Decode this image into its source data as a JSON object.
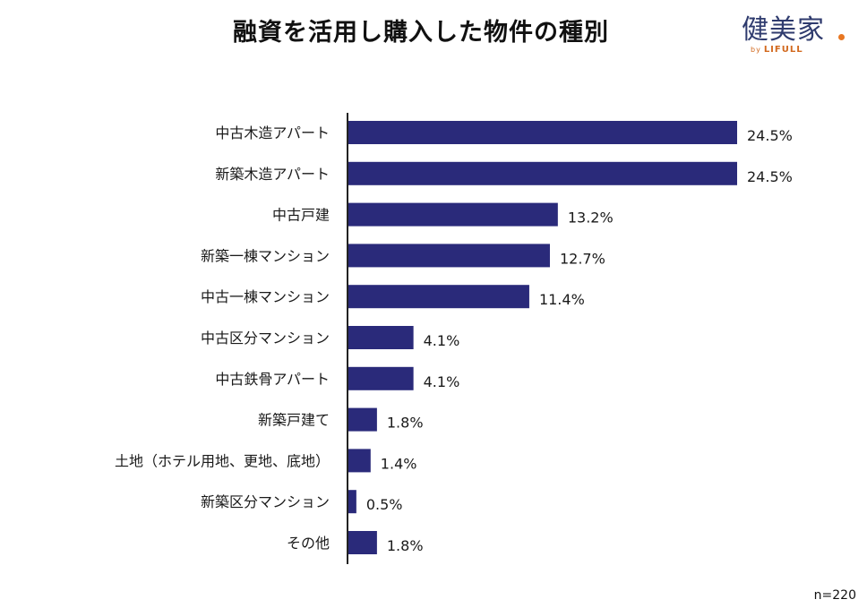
{
  "title": "融資を活用し購入した物件の種別",
  "logo": {
    "main": "健美家",
    "by": "by",
    "brand": "LIFULL",
    "dot_color": "#e87722"
  },
  "sample_size": "n=220",
  "colors": {
    "bar": "#2a2a7a",
    "axis": "#222222"
  },
  "chart_data": {
    "type": "bar",
    "orientation": "horizontal",
    "title": "融資を活用し購入した物件の種別",
    "xlabel": "",
    "ylabel": "",
    "categories": [
      "中古木造アパート",
      "新築木造アパート",
      "中古戸建",
      "新築一棟マンション",
      "中古一棟マンション",
      "中古区分マンション",
      "中古鉄骨アパート",
      "新築戸建て",
      "土地（ホテル用地、更地、底地）",
      "新築区分マンション",
      "その他"
    ],
    "values": [
      24.5,
      24.5,
      13.2,
      12.7,
      11.4,
      4.1,
      4.1,
      1.8,
      1.4,
      0.5,
      1.8
    ],
    "value_labels": [
      "24.5%",
      "24.5%",
      "13.2%",
      "12.7%",
      "11.4%",
      "4.1%",
      "4.1%",
      "1.8%",
      "1.4%",
      "0.5%",
      "1.8%"
    ],
    "unit": "%",
    "xlim": [
      0,
      25
    ],
    "grid": false,
    "legend": "none"
  }
}
